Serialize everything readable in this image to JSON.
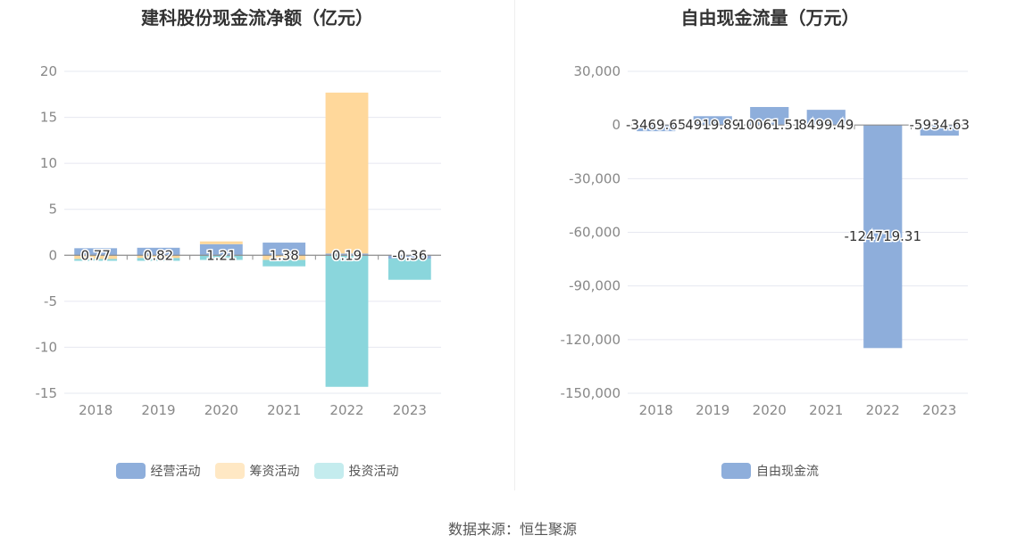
{
  "charts": {
    "left": {
      "title": "建科股份现金流净额（亿元）"
    },
    "right": {
      "title": "自由现金流量（万元）"
    }
  },
  "legend": {
    "operating": "经营活动",
    "financing": "筹资活动",
    "investing": "投资活动",
    "free_cash_flow": "自由现金流"
  },
  "source": "数据来源：恒生聚源",
  "colors": {
    "operating": "#8eaedb",
    "financing": "#ffd89b",
    "investing": "#8ad6dc",
    "legend_financing": "#ffe8c4",
    "legend_investing": "#c4ecee"
  },
  "chart_data": [
    {
      "type": "bar",
      "title": "建科股份现金流净额（亿元）",
      "categories": [
        "2018",
        "2019",
        "2020",
        "2021",
        "2022",
        "2023"
      ],
      "ylim": [
        -15,
        20
      ],
      "yticks": [
        20,
        15,
        10,
        5,
        0,
        -5,
        -10,
        -15
      ],
      "ytick_labels": [
        "20",
        "15",
        "10",
        "5",
        "0",
        "-5",
        "-10",
        "-15"
      ],
      "series": [
        {
          "name": "经营活动",
          "values": [
            0.77,
            0.82,
            1.21,
            1.38,
            0.19,
            -0.36
          ]
        },
        {
          "name": "筹资活动",
          "values": [
            -0.4,
            -0.3,
            0.3,
            -0.5,
            17.5,
            0
          ]
        },
        {
          "name": "投资活动",
          "values": [
            -0.2,
            -0.3,
            -0.5,
            -0.7,
            -14.3,
            -2.3
          ]
        }
      ],
      "data_labels": [
        "0.77",
        "0.82",
        "1.21",
        "1.38",
        "0.19",
        "-0.36"
      ],
      "grid": true,
      "legend_position": "bottom"
    },
    {
      "type": "bar",
      "title": "自由现金流量（万元）",
      "categories": [
        "2018",
        "2019",
        "2020",
        "2021",
        "2022",
        "2023"
      ],
      "ylim": [
        -150000,
        30000
      ],
      "yticks": [
        30000,
        0,
        -30000,
        -60000,
        -90000,
        -120000,
        -150000
      ],
      "ytick_labels": [
        "30,000",
        "0",
        "-30,000",
        "-60,000",
        "-90,000",
        "-120,000",
        "-150,000"
      ],
      "series": [
        {
          "name": "自由现金流",
          "values": [
            -3469.65,
            4919.89,
            10061.51,
            8499.49,
            -124719.31,
            -5934.63
          ]
        }
      ],
      "data_labels": [
        "-3469.65",
        "4919.89",
        "10061.51",
        "8499.49",
        "-124719.31",
        "-5934.63"
      ],
      "grid": true,
      "legend_position": "bottom"
    }
  ]
}
